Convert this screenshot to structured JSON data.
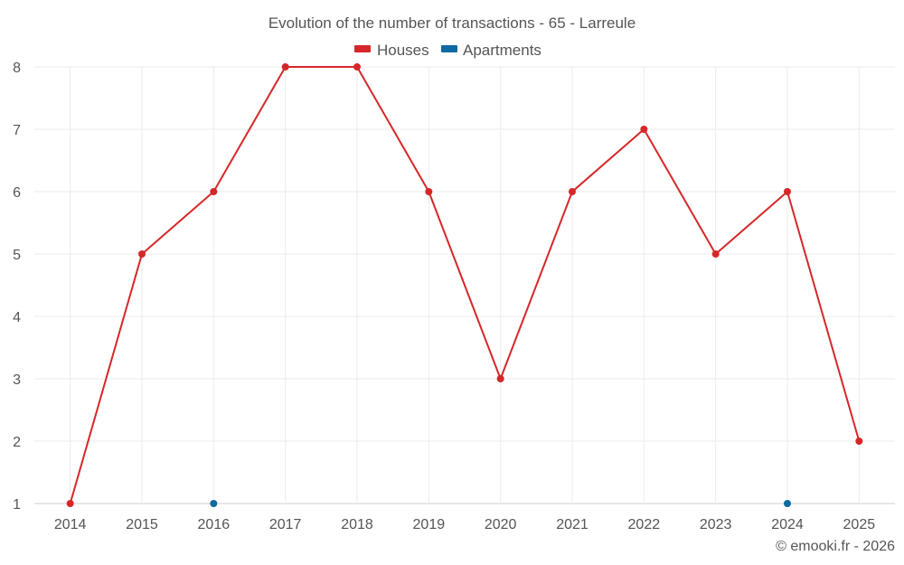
{
  "chart_data": {
    "type": "line",
    "title": "Evolution of the number of transactions - 65 - Larreule",
    "categories": [
      "2014",
      "2015",
      "2016",
      "2017",
      "2018",
      "2019",
      "2020",
      "2021",
      "2022",
      "2023",
      "2024",
      "2025"
    ],
    "series": [
      {
        "name": "Houses",
        "color": "#d62728",
        "values": [
          1,
          5,
          6,
          8,
          8,
          6,
          3,
          6,
          7,
          5,
          6,
          2
        ]
      },
      {
        "name": "Apartments",
        "color": "#0d6aa3",
        "values": [
          null,
          null,
          1,
          null,
          null,
          null,
          null,
          null,
          null,
          null,
          1,
          null
        ]
      }
    ],
    "ylim": [
      1,
      8
    ],
    "yticks": [
      1,
      2,
      3,
      4,
      5,
      6,
      7,
      8
    ],
    "grid": true,
    "legend_position": "top-center",
    "credit": "© emooki.fr - 2026"
  }
}
